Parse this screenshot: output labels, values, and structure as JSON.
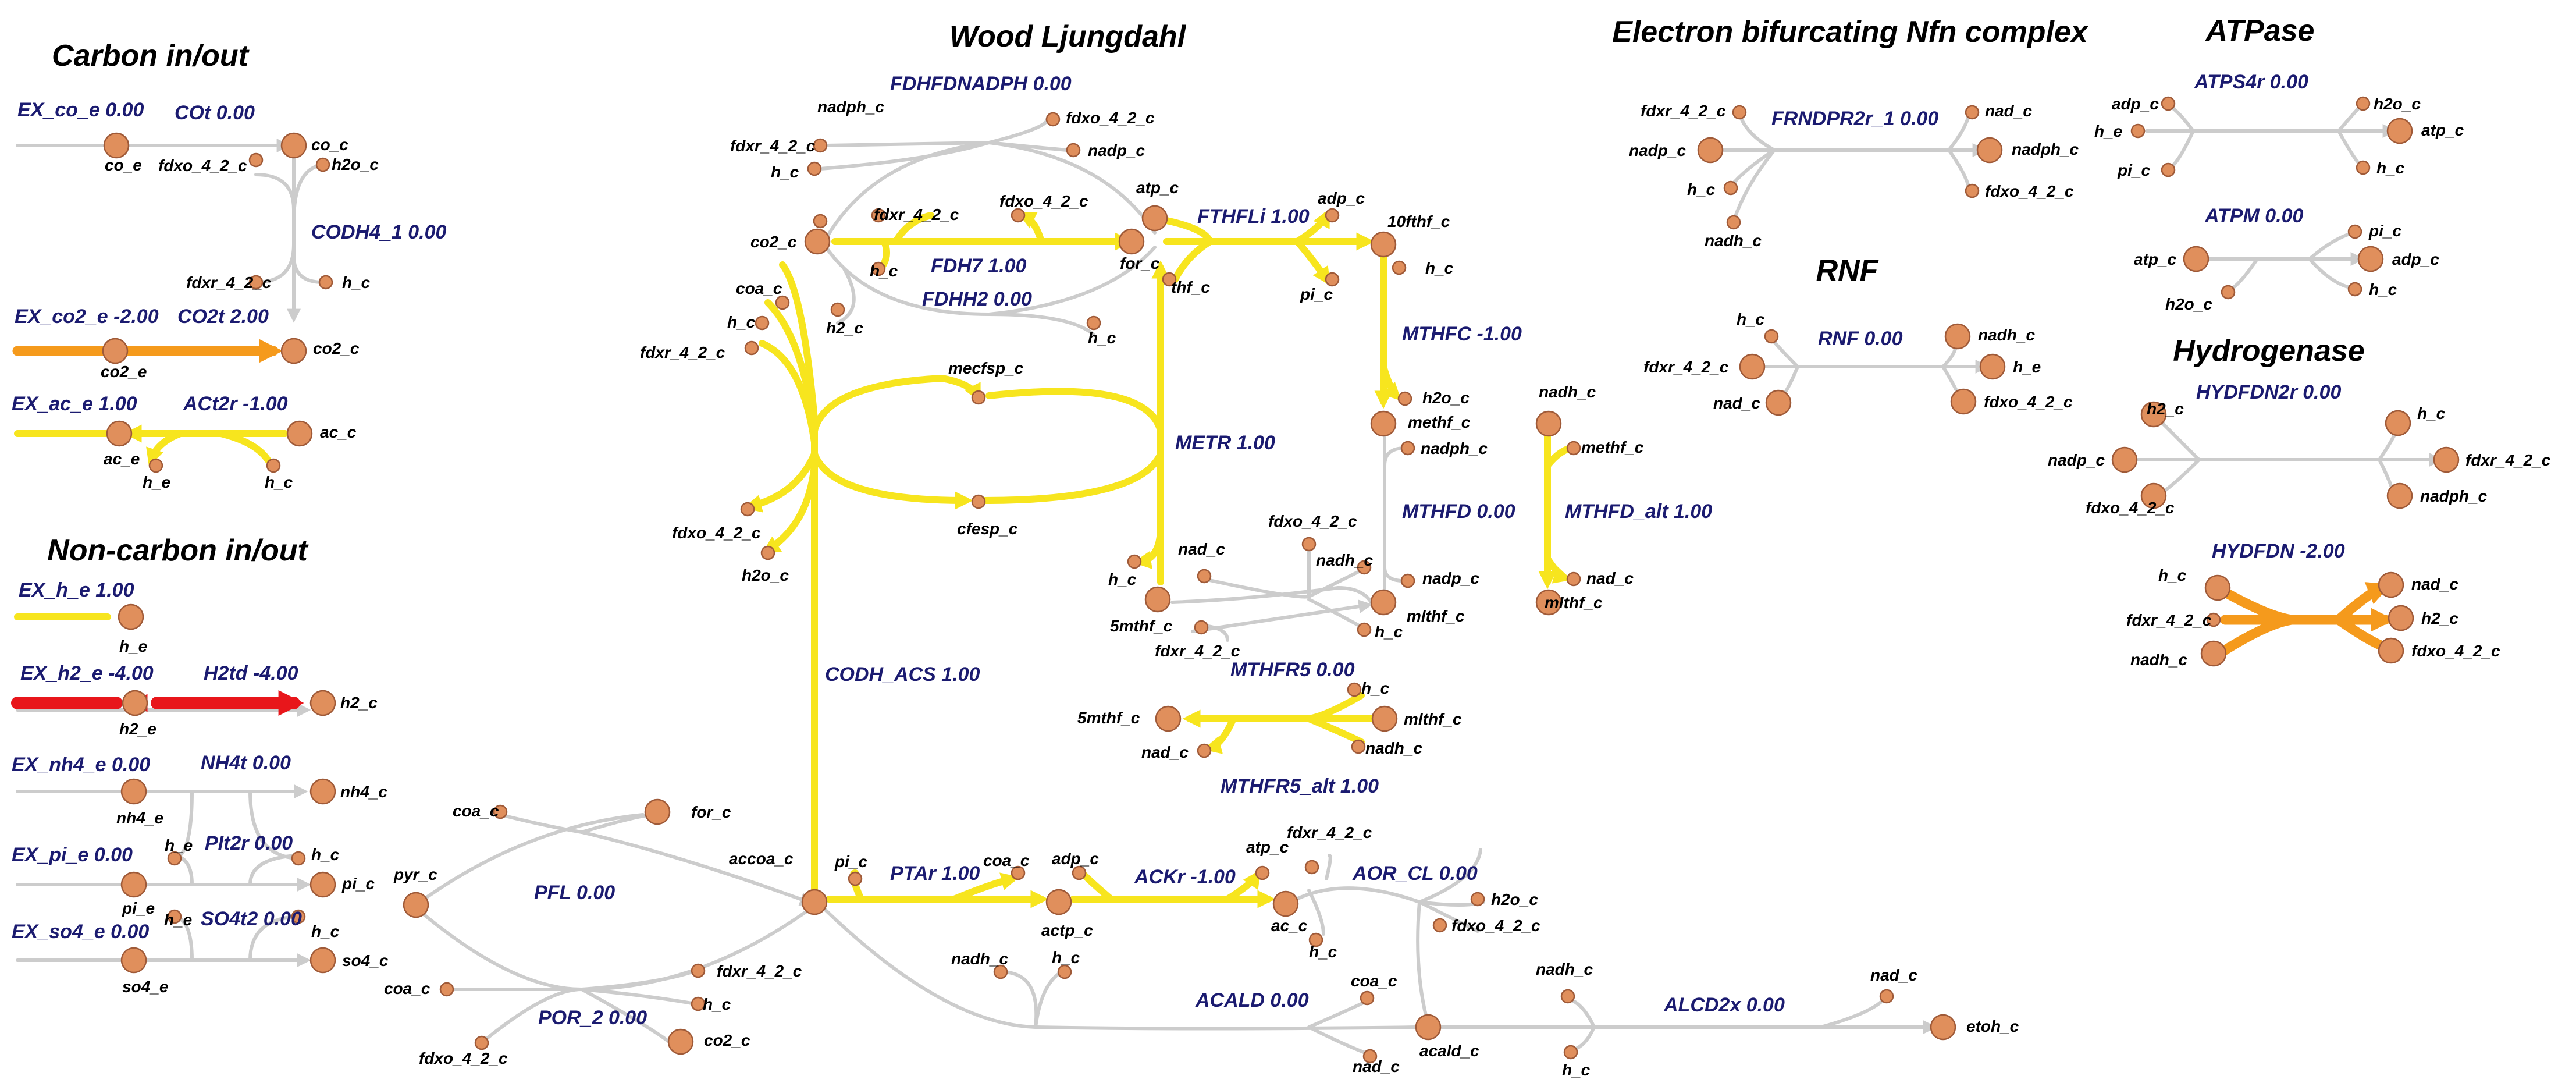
{
  "colors": {
    "inactive": "#cccccc",
    "node": "#e08f5c",
    "node_stroke": "#9f5a38",
    "section": "#000000",
    "reaction": "#1b1b70",
    "metabolite": "#000000",
    "flux_yellow": "#f7e51e",
    "flux_orange": "#f59a1c",
    "flux_red": "#e8161b"
  },
  "sections": {
    "carbon": "Carbon in/out",
    "noncarbon": "Non-carbon in/out",
    "wood": "Wood Ljungdahl",
    "nfn": "Electron bifurcating Nfn complex",
    "rnf": "RNF",
    "atpase": "ATPase",
    "hydrogenase": "Hydrogenase"
  },
  "reactions": {
    "EX_co_e": "EX_co_e 0.00",
    "COt": "COt 0.00",
    "CODH4_1": "CODH4_1 0.00",
    "EX_co2_e": "EX_co2_e -2.00",
    "CO2t": "CO2t 2.00",
    "EX_ac_e": "EX_ac_e 1.00",
    "ACt2r": "ACt2r -1.00",
    "EX_h_e": "EX_h_e 1.00",
    "EX_h2_e": "EX_h2_e -4.00",
    "H2td": "H2td -4.00",
    "EX_nh4_e": "EX_nh4_e 0.00",
    "NH4t": "NH4t 0.00",
    "EX_pi_e": "EX_pi_e 0.00",
    "PIt2r": "PIt2r 0.00",
    "EX_so4_e": "EX_so4_e 0.00",
    "SO4t2": "SO4t2 0.00",
    "PFL": "PFL 0.00",
    "POR_2": "POR_2 0.00",
    "FDHFDNADPH": "FDHFDNADPH 0.00",
    "FDH7": "FDH7 1.00",
    "FDHH2": "FDHH2 0.00",
    "FTHFLi": "FTHFLi 1.00",
    "MTHFC": "MTHFC -1.00",
    "METR": "METR 1.00",
    "MTHFD": "MTHFD 0.00",
    "MTHFD_alt": "MTHFD_alt 1.00",
    "MTHFR5": "MTHFR5 0.00",
    "MTHFR5_alt": "MTHFR5_alt 1.00",
    "CODH_ACS": "CODH_ACS 1.00",
    "PTAr": "PTAr 1.00",
    "ACKr": "ACKr -1.00",
    "AOR_CL": "AOR_CL 0.00",
    "ACALD": "ACALD 0.00",
    "ALCD2x": "ALCD2x 0.00",
    "FRNDPR2r_1": "FRNDPR2r_1 0.00",
    "RNF": "RNF 0.00",
    "ATPS4r": "ATPS4r 0.00",
    "ATPM": "ATPM 0.00",
    "HYDFDN2r": "HYDFDN2r 0.00",
    "HYDFDN": "HYDFDN -2.00"
  },
  "metabolites": {
    "co_e": "co_e",
    "co_c": "co_c",
    "fdxo_4_2_c": "fdxo_4_2_c",
    "fdxr_4_2_c": "fdxr_4_2_c",
    "h2o_c": "h2o_c",
    "h_c": "h_c",
    "h_e": "h_e",
    "co2_e": "co2_e",
    "co2_c": "co2_c",
    "ac_e": "ac_e",
    "ac_c": "ac_c",
    "h2_e": "h2_e",
    "h2_c": "h2_c",
    "nh4_e": "nh4_e",
    "nh4_c": "nh4_c",
    "pi_e": "pi_e",
    "pi_c": "pi_c",
    "so4_e": "so4_e",
    "so4_c": "so4_c",
    "pyr_c": "pyr_c",
    "coa_c": "coa_c",
    "for_c": "for_c",
    "accoa_c": "accoa_c",
    "nadph_c": "nadph_c",
    "nadp_c": "nadp_c",
    "nadh_c": "nadh_c",
    "nad_c": "nad_c",
    "atp_c": "atp_c",
    "adp_c": "adp_c",
    "thf_c": "thf_c",
    "tenfthf_c": "10fthf_c",
    "methf_c": "methf_c",
    "mlthf_c": "mlthf_c",
    "fivemthf_c": "5mthf_c",
    "mecfsp_c": "mecfsp_c",
    "cfesp_c": "cfesp_c",
    "actp_c": "actp_c",
    "acald_c": "acald_c",
    "etoh_c": "etoh_c"
  }
}
